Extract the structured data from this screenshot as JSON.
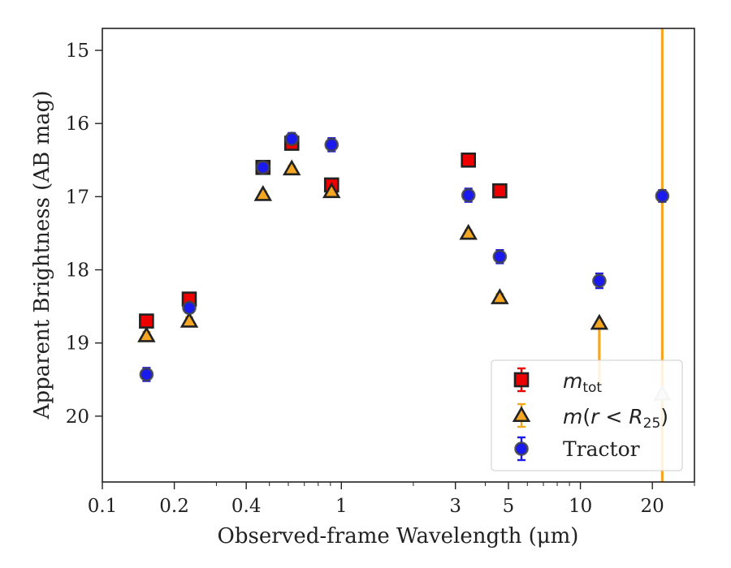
{
  "chart_data": {
    "type": "scatter",
    "title": "",
    "xlabel": "Observed-frame Wavelength (μm)",
    "ylabel": "Apparent Brightness (AB mag)",
    "x_scale": "log",
    "xlim": [
      0.1,
      30
    ],
    "ylim": [
      20.9,
      14.7
    ],
    "y_inverted": true,
    "grid": false,
    "legend_position": "lower-right",
    "x_ticks": [
      0.1,
      0.2,
      0.4,
      1,
      3,
      5,
      10,
      20
    ],
    "x_tick_labels": [
      "0.1",
      "0.2",
      "0.4",
      "1",
      "3",
      "5",
      "10",
      "20"
    ],
    "y_ticks": [
      15,
      16,
      17,
      18,
      19,
      20
    ],
    "y_tick_labels": [
      "15",
      "16",
      "17",
      "18",
      "19",
      "20"
    ],
    "series": [
      {
        "name": "m_tot",
        "legend_main": "m",
        "legend_sub": "tot",
        "marker": "square",
        "color": "#ee0000",
        "points": [
          {
            "x": 0.153,
            "y": 18.7,
            "err": 0.05
          },
          {
            "x": 0.231,
            "y": 18.4,
            "err": 0.05
          },
          {
            "x": 0.47,
            "y": 16.6,
            "err": 0.05
          },
          {
            "x": 0.62,
            "y": 16.27,
            "err": 0.06
          },
          {
            "x": 0.91,
            "y": 16.84,
            "err": 0.05
          },
          {
            "x": 3.4,
            "y": 16.5,
            "err": 0.04
          },
          {
            "x": 4.6,
            "y": 16.92,
            "err": 0.04
          }
        ]
      },
      {
        "name": "m(r < R25)",
        "legend_main": "m",
        "legend_inner": "r < R",
        "legend_sub": "25",
        "marker": "triangle",
        "color": "#f5a623",
        "points": [
          {
            "x": 0.153,
            "y": 18.9,
            "err": 0.05
          },
          {
            "x": 0.231,
            "y": 18.7,
            "err": 0.05
          },
          {
            "x": 0.47,
            "y": 16.97,
            "err": 0.04
          },
          {
            "x": 0.62,
            "y": 16.62,
            "err": 0.04
          },
          {
            "x": 0.91,
            "y": 16.93,
            "err": 0.04
          },
          {
            "x": 3.4,
            "y": 17.5,
            "err": 0.04
          },
          {
            "x": 4.6,
            "y": 18.38,
            "err": 0.05
          },
          {
            "x": 12.0,
            "y": 18.73,
            "err": 0.0,
            "err_lo": 0.0,
            "err_hi": 0.0,
            "lower_bar_to": 19.55
          },
          {
            "x": 22.0,
            "y": 19.7,
            "err": 0.0,
            "full_span": true,
            "faded": true
          }
        ]
      },
      {
        "name": "Tractor",
        "legend_main": "Tractor",
        "marker": "circle",
        "color": "#1a1aee",
        "points": [
          {
            "x": 0.153,
            "y": 19.43,
            "err": 0.09
          },
          {
            "x": 0.231,
            "y": 18.52,
            "err": 0.06
          },
          {
            "x": 0.47,
            "y": 16.6,
            "err": 0.06
          },
          {
            "x": 0.62,
            "y": 16.21,
            "err": 0.08
          },
          {
            "x": 0.91,
            "y": 16.29,
            "err": 0.09
          },
          {
            "x": 3.4,
            "y": 16.98,
            "err": 0.09
          },
          {
            "x": 4.6,
            "y": 17.82,
            "err": 0.09
          },
          {
            "x": 12.0,
            "y": 18.15,
            "err": 0.1
          },
          {
            "x": 22.0,
            "y": 16.99,
            "err": 0.08
          }
        ]
      }
    ]
  }
}
